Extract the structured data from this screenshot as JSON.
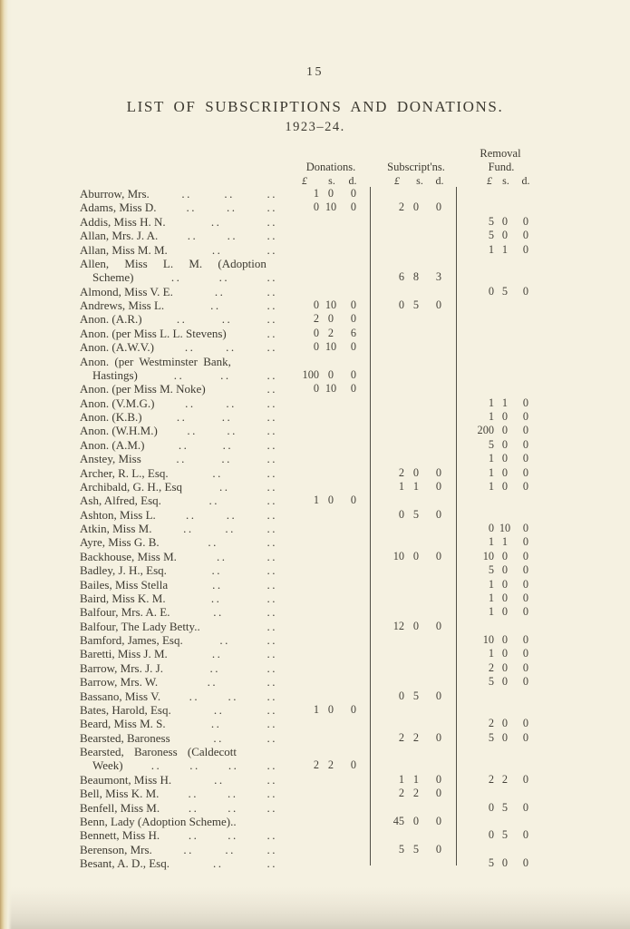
{
  "page": {
    "number": "15",
    "title": "LIST OF SUBSCRIPTIONS AND DONATIONS.",
    "subtitle": "1923–24."
  },
  "colors": {
    "paper": "#f5f1e1",
    "ink": "#3d3a31",
    "rule": "#514f46",
    "page_edge": "#bfa26e"
  },
  "table": {
    "headers": {
      "donations": "Donations.",
      "subscriptions": "Subscript'ns.",
      "removal_line1": "Removal",
      "removal_line2": "Fund."
    },
    "currency": {
      "pound": "£",
      "shilling": "s.",
      "pence": "d."
    },
    "rows": [
      {
        "name": "Aburrow, Mrs.",
        "dot_groups": 3,
        "don": [
          "1",
          "0",
          "0"
        ]
      },
      {
        "name": "Adams, Miss D.",
        "dot_groups": 3,
        "don": [
          "0",
          "10",
          "0"
        ],
        "sub": [
          "2",
          "0",
          "0"
        ]
      },
      {
        "name": "Addis, Miss H. N.",
        "dot_groups": 2,
        "rem": [
          "5",
          "0",
          "0"
        ]
      },
      {
        "name": "Allan, Mrs. J. A.",
        "dot_groups": 3,
        "rem": [
          "5",
          "0",
          "0"
        ]
      },
      {
        "name": "Allan, Miss M. M.",
        "dot_groups": 2,
        "rem": [
          "1",
          "1",
          "0"
        ]
      },
      {
        "name": "Allen, Miss L. M. (Adoption",
        "dot_groups": 0,
        "word_spacing": 14
      },
      {
        "name": "Scheme)",
        "indent": true,
        "dot_groups": 3,
        "sub": [
          "6",
          "8",
          "3"
        ]
      },
      {
        "name": "Almond, Miss V. E.",
        "dot_groups": 2,
        "rem": [
          "0",
          "5",
          "0"
        ]
      },
      {
        "name": "Andrews, Miss L.",
        "dot_groups": 2,
        "don": [
          "0",
          "10",
          "0"
        ],
        "sub": [
          "0",
          "5",
          "0"
        ]
      },
      {
        "name": "Anon. (A.R.)",
        "dot_groups": 3,
        "don": [
          "2",
          "0",
          "0"
        ]
      },
      {
        "name": "Anon. (per Miss L. L. Stevens)",
        "dot_groups": 1,
        "don": [
          "0",
          "2",
          "6"
        ]
      },
      {
        "name": "Anon. (A.W.V.)",
        "dot_groups": 3,
        "don": [
          "0",
          "10",
          "0"
        ]
      },
      {
        "name": "Anon. (per Westminster Bank,",
        "dot_groups": 0,
        "word_spacing": 3
      },
      {
        "name": "Hastings)",
        "indent": true,
        "dot_groups": 3,
        "don": [
          "100",
          "0",
          "0"
        ]
      },
      {
        "name": "Anon. (per Miss M. Noke)",
        "dot_groups": 1,
        "don": [
          "0",
          "10",
          "0"
        ]
      },
      {
        "name": "Anon. (V.M.G.)",
        "dot_groups": 3,
        "rem": [
          "1",
          "1",
          "0"
        ]
      },
      {
        "name": "Anon. (K.B.)",
        "dot_groups": 3,
        "rem": [
          "1",
          "0",
          "0"
        ]
      },
      {
        "name": "Anon. (W.H.M.)",
        "dot_groups": 3,
        "rem": [
          "200",
          "0",
          "0"
        ]
      },
      {
        "name": "Anon. (A.M.)",
        "dot_groups": 3,
        "rem": [
          "5",
          "0",
          "0"
        ]
      },
      {
        "name": "Anstey, Miss",
        "dot_groups": 3,
        "rem": [
          "1",
          "0",
          "0"
        ]
      },
      {
        "name": "Archer, R. L., Esq.",
        "dot_groups": 2,
        "sub": [
          "2",
          "0",
          "0"
        ],
        "rem": [
          "1",
          "0",
          "0"
        ]
      },
      {
        "name": "Archibald, G. H., Esq",
        "dot_groups": 2,
        "sub": [
          "1",
          "1",
          "0"
        ],
        "rem": [
          "1",
          "0",
          "0"
        ]
      },
      {
        "name": "Ash, Alfred, Esq.",
        "dot_groups": 2,
        "don": [
          "1",
          "0",
          "0"
        ]
      },
      {
        "name": "Ashton, Miss L.",
        "dot_groups": 3,
        "sub": [
          "0",
          "5",
          "0"
        ]
      },
      {
        "name": "Atkin, Miss M.",
        "dot_groups": 3,
        "rem": [
          "0",
          "10",
          "0"
        ]
      },
      {
        "name": "Ayre, Miss G. B.",
        "dot_groups": 2,
        "rem": [
          "1",
          "1",
          "0"
        ]
      },
      {
        "name": "Backhouse, Miss M.",
        "dot_groups": 2,
        "sub": [
          "10",
          "0",
          "0"
        ],
        "rem": [
          "10",
          "0",
          "0"
        ]
      },
      {
        "name": "Badley, J. H., Esq.",
        "dot_groups": 2,
        "rem": [
          "5",
          "0",
          "0"
        ]
      },
      {
        "name": "Bailes, Miss Stella",
        "dot_groups": 2,
        "rem": [
          "1",
          "0",
          "0"
        ]
      },
      {
        "name": "Baird, Miss K. M.",
        "dot_groups": 2,
        "rem": [
          "1",
          "0",
          "0"
        ]
      },
      {
        "name": "Balfour, Mrs. A. E.",
        "dot_groups": 2,
        "rem": [
          "1",
          "0",
          "0"
        ]
      },
      {
        "name": "Balfour, The Lady Betty..",
        "dot_groups": 1,
        "sub": [
          "12",
          "0",
          "0"
        ]
      },
      {
        "name": "Bamford, James, Esq.",
        "dot_groups": 2,
        "rem": [
          "10",
          "0",
          "0"
        ]
      },
      {
        "name": "Baretti, Miss J. M.",
        "dot_groups": 2,
        "rem": [
          "1",
          "0",
          "0"
        ]
      },
      {
        "name": "Barrow, Mrs. J. J.",
        "dot_groups": 2,
        "rem": [
          "2",
          "0",
          "0"
        ]
      },
      {
        "name": "Barrow, Mrs. W.",
        "dot_groups": 2,
        "rem": [
          "5",
          "0",
          "0"
        ]
      },
      {
        "name": "Bassano, Miss V.",
        "dot_groups": 3,
        "sub": [
          "0",
          "5",
          "0"
        ]
      },
      {
        "name": "Bates, Harold, Esq.",
        "dot_groups": 2,
        "don": [
          "1",
          "0",
          "0"
        ]
      },
      {
        "name": "Beard, Miss M. S.",
        "dot_groups": 2,
        "rem": [
          "2",
          "0",
          "0"
        ]
      },
      {
        "name": "Bearsted, Baroness",
        "dot_groups": 2,
        "sub": [
          "2",
          "2",
          "0"
        ],
        "rem": [
          "5",
          "0",
          "0"
        ]
      },
      {
        "name": "Bearsted, Baroness (Caldecott",
        "dot_groups": 0,
        "word_spacing": 8
      },
      {
        "name": "Week)",
        "indent": true,
        "dot_groups": 4,
        "don": [
          "2",
          "2",
          "0"
        ]
      },
      {
        "name": "Beaumont, Miss H.",
        "dot_groups": 2,
        "sub": [
          "1",
          "1",
          "0"
        ],
        "rem": [
          "2",
          "2",
          "0"
        ]
      },
      {
        "name": "Bell, Miss K. M.",
        "dot_groups": 3,
        "sub": [
          "2",
          "2",
          "0"
        ]
      },
      {
        "name": "Benfell, Miss M.",
        "dot_groups": 3,
        "rem": [
          "0",
          "5",
          "0"
        ]
      },
      {
        "name": "Benn, Lady (Adoption Scheme)..",
        "dot_groups": 0,
        "sub": [
          "45",
          "0",
          "0"
        ]
      },
      {
        "name": "Bennett, Miss H.",
        "dot_groups": 3,
        "rem": [
          "0",
          "5",
          "0"
        ]
      },
      {
        "name": "Berenson, Mrs.",
        "dot_groups": 3,
        "sub": [
          "5",
          "5",
          "0"
        ]
      },
      {
        "name": "Besant, A. D., Esq.",
        "dot_groups": 2,
        "rem": [
          "5",
          "0",
          "0"
        ]
      }
    ]
  }
}
